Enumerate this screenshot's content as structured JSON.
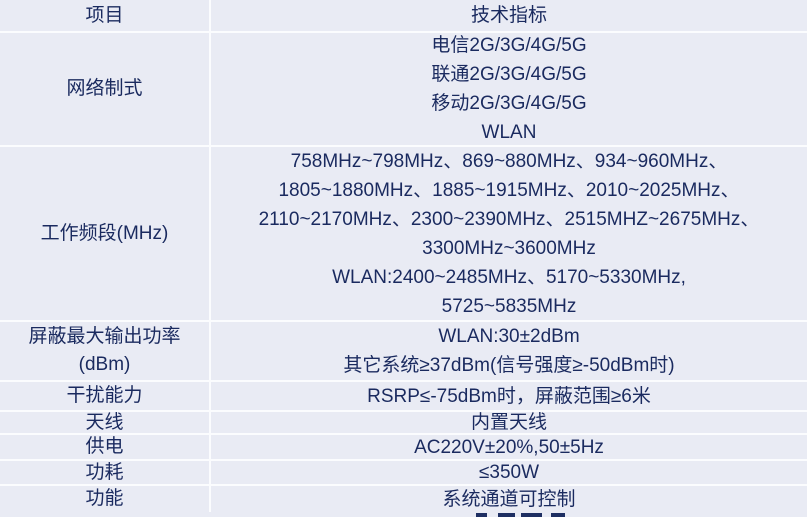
{
  "colors": {
    "background": "#e9ebf4",
    "grid_line": "#fbfcfe",
    "text": "#1a2a5f",
    "cutoff_mark": "#1e2f62"
  },
  "table": {
    "header": {
      "item": "项目",
      "spec": "技术指标"
    },
    "rows": [
      {
        "item": "网络制式",
        "specs": [
          "电信2G/3G/4G/5G",
          "联通2G/3G/4G/5G",
          "移动2G/3G/4G/5G",
          "WLAN"
        ]
      },
      {
        "item": "工作频段(MHz)",
        "specs": [
          "758MHz~798MHz、869~880MHz、934~960MHz、",
          "1805~1880MHz、1885~1915MHz、2010~2025MHz、",
          "2110~2170MHz、2300~2390MHz、2515MHZ~2675MHz、",
          "3300MHz~3600MHz",
          "WLAN:2400~2485MHz、5170~5330MHz,",
          "5725~5835MHz"
        ]
      },
      {
        "item": "屏蔽最大输出功率(dBm)",
        "specs": [
          "WLAN:30±2dBm",
          "其它系统≥37dBm(信号强度≥-50dBm时)"
        ]
      },
      {
        "item": "干扰能力",
        "specs": [
          "RSRP≤-75dBm时，屏蔽范围≥6米"
        ]
      },
      {
        "item": "天线",
        "specs": [
          "内置天线"
        ]
      },
      {
        "item": "供电",
        "specs": [
          "AC220V±20%,50±5Hz"
        ]
      },
      {
        "item": "功耗",
        "specs": [
          "≤350W"
        ]
      },
      {
        "item": "功能",
        "specs": [
          "系统通道可控制"
        ]
      }
    ]
  }
}
